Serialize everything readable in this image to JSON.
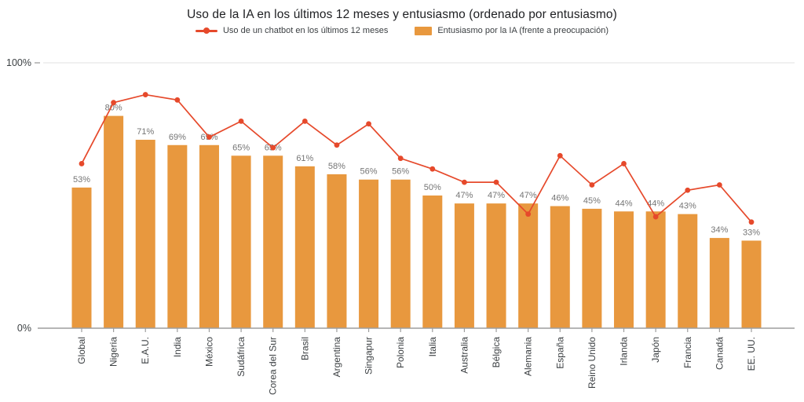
{
  "title": "Uso de la IA en los últimos 12 meses y entusiasmo (ordenado por entusiasmo)",
  "legend": {
    "line_label": "Uso de un chatbot en los últimos 12 meses",
    "bar_label": "Entusiasmo por la IA (frente a preocupación)"
  },
  "colors": {
    "bar": "#E8983E",
    "line": "#E6492B",
    "value_label": "#757575",
    "axis": "#9E9E9E",
    "grid": "#E8E8E8",
    "axis_text": "#3C4043",
    "title_text": "#202124"
  },
  "chart_data": {
    "type": "combo-bar-line",
    "title": "Uso de la IA en los últimos 12 meses y entusiasmo (ordenado por entusiasmo)",
    "categories": [
      "Global",
      "Nigeria",
      "E.A.U.",
      "India",
      "México",
      "Sudáfrica",
      "Corea del Sur",
      "Brasil",
      "Argentina",
      "Singapur",
      "Polonia",
      "Italia",
      "Australia",
      "Bélgica",
      "Alemania",
      "España",
      "Reino Unido",
      "Irlanda",
      "Japón",
      "Francia",
      "Canadá",
      "EE. UU."
    ],
    "series": [
      {
        "name": "Entusiasmo por la IA (frente a preocupación)",
        "type": "bar",
        "values": [
          53,
          80,
          71,
          69,
          69,
          65,
          65,
          61,
          58,
          56,
          56,
          50,
          47,
          47,
          47,
          46,
          45,
          44,
          44,
          43,
          34,
          33
        ],
        "data_labels": [
          "53%",
          "80%",
          "71%",
          "69%",
          "69%",
          "65%",
          "65%",
          "61%",
          "58%",
          "56%",
          "56%",
          "50%",
          "47%",
          "47%",
          "47%",
          "46%",
          "45%",
          "44%",
          "44%",
          "43%",
          "34%",
          "33%"
        ]
      },
      {
        "name": "Uso de un chatbot en los últimos 12 meses",
        "type": "line",
        "values": [
          62,
          85,
          88,
          86,
          72,
          78,
          68,
          78,
          69,
          77,
          64,
          60,
          55,
          55,
          43,
          65,
          54,
          62,
          42,
          52,
          54,
          40
        ]
      }
    ],
    "yaxis": {
      "min": 0,
      "max": 100,
      "tick_labels": [
        "0%",
        "100%"
      ]
    },
    "grid": "top-line-only",
    "legend_position": "top",
    "xlabel": "",
    "ylabel": ""
  },
  "yaxis_labels": {
    "top": "100%",
    "bottom": "0%"
  }
}
